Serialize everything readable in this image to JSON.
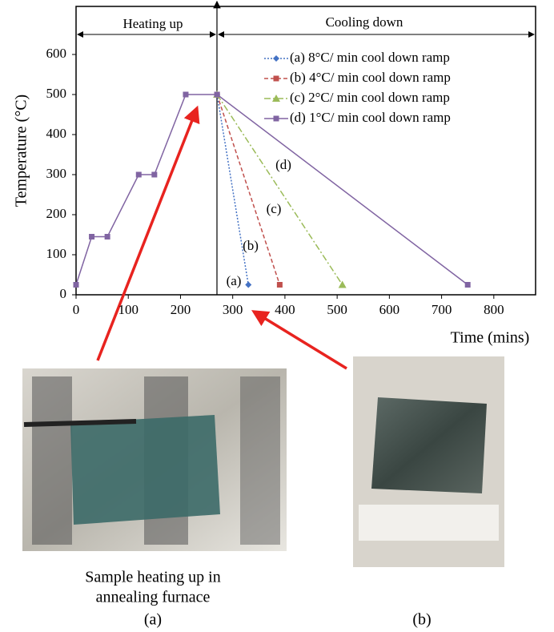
{
  "chart_data": {
    "type": "line",
    "xlabel": "Time (mins)",
    "ylabel": "Temperature (°C)",
    "xlim": [
      0,
      880
    ],
    "ylim": [
      0,
      720
    ],
    "xticks": [
      0,
      100,
      200,
      300,
      400,
      500,
      600,
      700,
      800
    ],
    "yticks": [
      0,
      100,
      200,
      300,
      400,
      500,
      600
    ],
    "series": [
      {
        "name": "(a) 8°C/ min cool down ramp",
        "color": "#4472c4",
        "x": [
          270,
          330
        ],
        "values": [
          500,
          25
        ]
      },
      {
        "name": "(b) 4°C/ min cool down ramp",
        "color": "#c0504d",
        "x": [
          270,
          390
        ],
        "values": [
          500,
          25
        ]
      },
      {
        "name": "(c) 2°C/ min cool down ramp",
        "color": "#9bbb59",
        "x": [
          270,
          510
        ],
        "values": [
          500,
          25
        ]
      },
      {
        "name": "(d) 1°C/ min cool down ramp",
        "color": "#8064a2",
        "x": [
          0,
          30,
          60,
          120,
          150,
          210,
          270,
          750
        ],
        "values": [
          25,
          145,
          145,
          300,
          300,
          500,
          500,
          25
        ]
      }
    ],
    "annotations": [
      "Heating up",
      "Cooling down",
      "(a)",
      "(b)",
      "(c)",
      "(d)"
    ]
  },
  "caption_a": [
    "Sample heating up in",
    "annealing furnace",
    "(a)"
  ],
  "caption_b": "(b)"
}
